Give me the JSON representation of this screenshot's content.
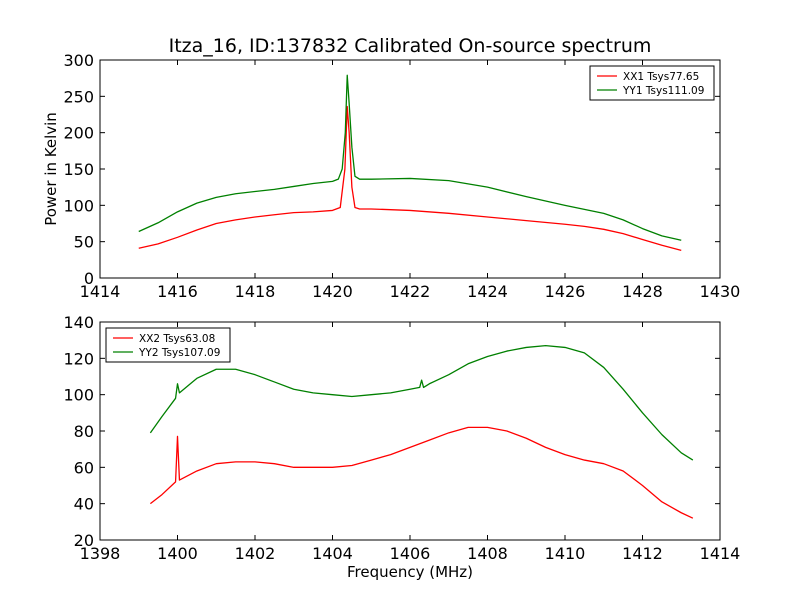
{
  "figure": {
    "title": "Itza_16, ID:137832 Calibrated On-source spectrum",
    "colors": {
      "red": "#ff0000",
      "green": "#008000"
    }
  },
  "chart_data": [
    {
      "type": "line",
      "title": "Itza_16, ID:137832 Calibrated On-source spectrum",
      "xlabel": "",
      "ylabel": "Power in Kelvin",
      "xlim": [
        1414,
        1430
      ],
      "ylim": [
        0,
        300
      ],
      "xticks": [
        "1414",
        "1416",
        "1418",
        "1420",
        "1422",
        "1424",
        "1426",
        "1428",
        "1430"
      ],
      "yticks": [
        "0",
        "50",
        "100",
        "150",
        "200",
        "250",
        "300"
      ],
      "legend_position": "top-right",
      "series": [
        {
          "name": "XX1 Tsys77.65",
          "color": "#ff0000",
          "points": [
            [
              1415.0,
              41
            ],
            [
              1415.5,
              47
            ],
            [
              1416.0,
              56
            ],
            [
              1416.5,
              66
            ],
            [
              1417.0,
              75
            ],
            [
              1417.5,
              80
            ],
            [
              1418.0,
              84
            ],
            [
              1418.5,
              87
            ],
            [
              1419.0,
              90
            ],
            [
              1419.5,
              91
            ],
            [
              1420.0,
              93
            ],
            [
              1420.2,
              97
            ],
            [
              1420.32,
              150
            ],
            [
              1420.38,
              236
            ],
            [
              1420.43,
              200
            ],
            [
              1420.5,
              125
            ],
            [
              1420.58,
              97
            ],
            [
              1420.7,
              95
            ],
            [
              1421.0,
              95
            ],
            [
              1422.0,
              93
            ],
            [
              1423.0,
              89
            ],
            [
              1424.0,
              84
            ],
            [
              1425.0,
              79
            ],
            [
              1426.0,
              74
            ],
            [
              1426.5,
              71
            ],
            [
              1427.0,
              67
            ],
            [
              1427.5,
              61
            ],
            [
              1428.0,
              53
            ],
            [
              1428.5,
              45
            ],
            [
              1429.0,
              38
            ]
          ]
        },
        {
          "name": "YY1 Tsys111.09",
          "color": "#008000",
          "points": [
            [
              1415.0,
              64
            ],
            [
              1415.5,
              76
            ],
            [
              1416.0,
              91
            ],
            [
              1416.5,
              103
            ],
            [
              1417.0,
              111
            ],
            [
              1417.5,
              116
            ],
            [
              1418.0,
              119
            ],
            [
              1418.5,
              122
            ],
            [
              1419.0,
              126
            ],
            [
              1419.5,
              130
            ],
            [
              1420.0,
              133
            ],
            [
              1420.15,
              136
            ],
            [
              1420.25,
              150
            ],
            [
              1420.33,
              200
            ],
            [
              1420.38,
              279
            ],
            [
              1420.43,
              240
            ],
            [
              1420.5,
              180
            ],
            [
              1420.58,
              140
            ],
            [
              1420.7,
              136
            ],
            [
              1421.0,
              136
            ],
            [
              1422.0,
              137
            ],
            [
              1423.0,
              134
            ],
            [
              1424.0,
              125
            ],
            [
              1425.0,
              112
            ],
            [
              1426.0,
              100
            ],
            [
              1427.0,
              89
            ],
            [
              1427.5,
              80
            ],
            [
              1428.0,
              68
            ],
            [
              1428.5,
              58
            ],
            [
              1429.0,
              52
            ]
          ]
        }
      ]
    },
    {
      "type": "line",
      "xlabel": "Frequency (MHz)",
      "ylabel": "",
      "xlim": [
        1398,
        1414
      ],
      "ylim": [
        20,
        140
      ],
      "xticks": [
        "1398",
        "1400",
        "1402",
        "1404",
        "1406",
        "1408",
        "1410",
        "1412",
        "1414"
      ],
      "yticks": [
        "20",
        "40",
        "60",
        "80",
        "100",
        "120",
        "140"
      ],
      "legend_position": "top-left",
      "series": [
        {
          "name": "XX2 Tsys63.08",
          "color": "#ff0000",
          "points": [
            [
              1399.3,
              40
            ],
            [
              1399.6,
              45
            ],
            [
              1399.95,
              52
            ],
            [
              1400.0,
              77
            ],
            [
              1400.05,
              53
            ],
            [
              1400.5,
              58
            ],
            [
              1401.0,
              62
            ],
            [
              1401.5,
              63
            ],
            [
              1402.0,
              63
            ],
            [
              1402.5,
              62
            ],
            [
              1403.0,
              60
            ],
            [
              1403.5,
              60
            ],
            [
              1404.0,
              60
            ],
            [
              1404.5,
              61
            ],
            [
              1405.0,
              64
            ],
            [
              1405.5,
              67
            ],
            [
              1406.0,
              71
            ],
            [
              1406.5,
              75
            ],
            [
              1407.0,
              79
            ],
            [
              1407.5,
              82
            ],
            [
              1408.0,
              82
            ],
            [
              1408.5,
              80
            ],
            [
              1409.0,
              76
            ],
            [
              1409.5,
              71
            ],
            [
              1410.0,
              67
            ],
            [
              1410.5,
              64
            ],
            [
              1411.0,
              62
            ],
            [
              1411.5,
              58
            ],
            [
              1412.0,
              50
            ],
            [
              1412.5,
              41
            ],
            [
              1413.0,
              35
            ],
            [
              1413.3,
              32
            ]
          ]
        },
        {
          "name": "YY2 Tsys107.09",
          "color": "#008000",
          "points": [
            [
              1399.3,
              79
            ],
            [
              1399.6,
              88
            ],
            [
              1399.95,
              98
            ],
            [
              1400.0,
              106
            ],
            [
              1400.05,
              101
            ],
            [
              1400.5,
              109
            ],
            [
              1401.0,
              114
            ],
            [
              1401.5,
              114
            ],
            [
              1402.0,
              111
            ],
            [
              1402.5,
              107
            ],
            [
              1403.0,
              103
            ],
            [
              1403.5,
              101
            ],
            [
              1404.0,
              100
            ],
            [
              1404.5,
              99
            ],
            [
              1405.0,
              100
            ],
            [
              1405.5,
              101
            ],
            [
              1406.0,
              103
            ],
            [
              1406.25,
              104
            ],
            [
              1406.3,
              108
            ],
            [
              1406.35,
              104
            ],
            [
              1406.5,
              106
            ],
            [
              1407.0,
              111
            ],
            [
              1407.5,
              117
            ],
            [
              1408.0,
              121
            ],
            [
              1408.5,
              124
            ],
            [
              1409.0,
              126
            ],
            [
              1409.5,
              127
            ],
            [
              1410.0,
              126
            ],
            [
              1410.5,
              123
            ],
            [
              1411.0,
              115
            ],
            [
              1411.5,
              103
            ],
            [
              1412.0,
              90
            ],
            [
              1412.5,
              78
            ],
            [
              1413.0,
              68
            ],
            [
              1413.3,
              64
            ]
          ]
        }
      ]
    }
  ]
}
